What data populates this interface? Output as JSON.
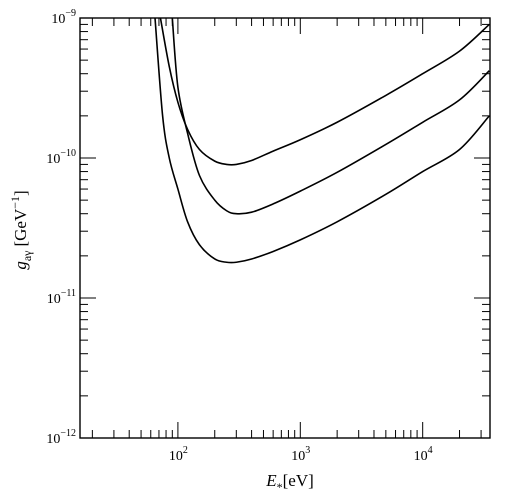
{
  "chart_data": {
    "type": "line",
    "x_scale": "log",
    "y_scale": "log",
    "xlim": [
      15.85,
      35481
    ],
    "ylim": [
      1e-12,
      1e-09
    ],
    "grid": false,
    "xlabel": {
      "main": "E",
      "sub": "*",
      "unit": "[eV]"
    },
    "ylabel": {
      "main": "g",
      "sub": "aγ",
      "unit": "[GeV",
      "unit_exp": "−1",
      "unit_close": "]"
    },
    "x_ticks": [
      {
        "value": 100,
        "base": "10",
        "exp": "2"
      },
      {
        "value": 1000,
        "base": "10",
        "exp": "3"
      },
      {
        "value": 10000,
        "base": "10",
        "exp": "4"
      }
    ],
    "y_ticks": [
      {
        "value": 1e-09,
        "base": "10",
        "exp": "−9"
      },
      {
        "value": 1e-10,
        "base": "10",
        "exp": "−10"
      },
      {
        "value": 1e-11,
        "base": "10",
        "exp": "−11"
      },
      {
        "value": 1e-12,
        "base": "10",
        "exp": "−12"
      }
    ],
    "series": [
      {
        "x": [
          72,
          85,
          100,
          120,
          150,
          200,
          250,
          300,
          400,
          600,
          1000,
          2000,
          5000,
          10000,
          20000,
          35000
        ],
        "y": [
          1e-09,
          4.5e-10,
          2.5e-10,
          1.6e-10,
          1.15e-10,
          9.5e-11,
          9e-11,
          9e-11,
          9.6e-11,
          1.12e-10,
          1.35e-10,
          1.8e-10,
          2.8e-10,
          4e-10,
          5.8e-10,
          9e-10
        ]
      },
      {
        "x": [
          90,
          100,
          120,
          150,
          200,
          250,
          300,
          400,
          600,
          1000,
          2000,
          5000,
          10000,
          20000,
          35000
        ],
        "y": [
          1e-09,
          3.2e-10,
          1.5e-10,
          7.5e-11,
          5e-11,
          4.2e-11,
          4e-11,
          4.1e-11,
          4.7e-11,
          5.8e-11,
          7.9e-11,
          1.25e-10,
          1.8e-10,
          2.6e-10,
          4.2e-10
        ]
      },
      {
        "x": [
          65,
          75,
          85,
          100,
          120,
          150,
          200,
          250,
          300,
          400,
          600,
          1000,
          2000,
          5000,
          10000,
          20000,
          35000
        ],
        "y": [
          1e-09,
          2e-10,
          1e-10,
          6e-11,
          3.5e-11,
          2.4e-11,
          1.9e-11,
          1.8e-11,
          1.8e-11,
          1.9e-11,
          2.15e-11,
          2.6e-11,
          3.5e-11,
          5.5e-11,
          8e-11,
          1.15e-10,
          2e-10
        ]
      }
    ]
  }
}
